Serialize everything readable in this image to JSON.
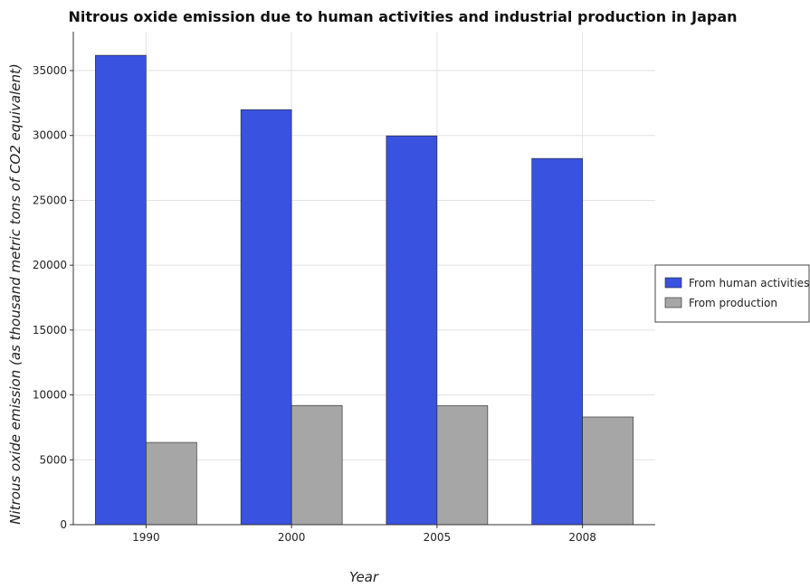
{
  "chart_data": {
    "type": "bar",
    "title": "Nitrous oxide emission due to human activities and industrial production in Japan",
    "xlabel": "Year",
    "ylabel": "Nitrous oxide emission (as thousand metric tons of CO2 equivalent)",
    "categories": [
      "1990",
      "2000",
      "2005",
      "2008"
    ],
    "series": [
      {
        "name": "From human activities",
        "color": "#3a52e0",
        "values": [
          36180,
          31990,
          29970,
          28230
        ]
      },
      {
        "name": "From production",
        "color": "#a6a6a6",
        "values": [
          6340,
          9190,
          9170,
          8300
        ]
      }
    ],
    "ylim": [
      0,
      38000
    ],
    "yticks": [
      0,
      5000,
      10000,
      15000,
      20000,
      25000,
      30000,
      35000
    ],
    "ytick_labels": [
      "0",
      "5000",
      "10000",
      "15000",
      "20000",
      "25000",
      "30000",
      "35000"
    ],
    "grid": true,
    "legend_position": "right"
  }
}
